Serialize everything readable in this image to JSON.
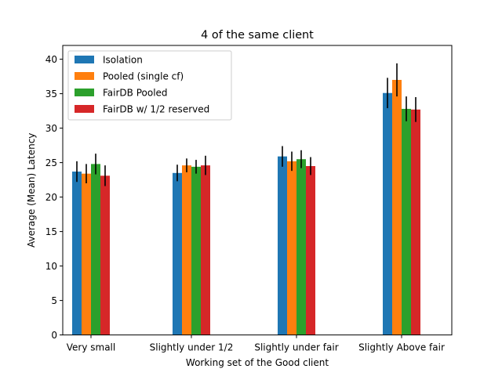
{
  "chart_data": {
    "type": "bar",
    "title": "4 of the same client",
    "xlabel": "Working set of the Good client",
    "ylabel": "Average (Mean) Latency",
    "ylim": [
      0,
      42
    ],
    "yticks": [
      0,
      5,
      10,
      15,
      20,
      25,
      30,
      35,
      40
    ],
    "categories": [
      "Very small",
      "Slightly under 1/2",
      "Slightly under fair",
      "Slightly Above fair"
    ],
    "legend_position": "top-left",
    "grid": false,
    "series": [
      {
        "name": "Isolation",
        "color": "#1f77b4",
        "values": [
          23.7,
          23.5,
          25.9,
          35.1
        ],
        "errors": [
          1.5,
          1.2,
          1.5,
          2.2
        ]
      },
      {
        "name": "Pooled (single cf)",
        "color": "#ff7f0e",
        "values": [
          23.4,
          24.6,
          25.2,
          37.0
        ],
        "errors": [
          1.4,
          1.0,
          1.4,
          2.4
        ]
      },
      {
        "name": "FairDB Pooled",
        "color": "#2ca02c",
        "values": [
          24.8,
          24.4,
          25.5,
          32.8
        ],
        "errors": [
          1.5,
          1.0,
          1.3,
          1.8
        ]
      },
      {
        "name": "FairDB w/ 1/2 reserved",
        "color": "#d62728",
        "values": [
          23.1,
          24.6,
          24.5,
          32.7
        ],
        "errors": [
          1.5,
          1.4,
          1.3,
          1.8
        ]
      }
    ]
  }
}
